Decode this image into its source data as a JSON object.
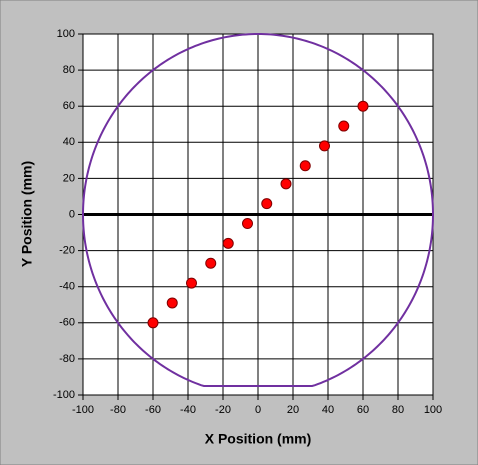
{
  "chart_data": {
    "type": "scatter",
    "x_label": "X Position (mm)",
    "y_label": "Y Position (mm)",
    "xlim": [
      -100,
      100
    ],
    "ylim": [
      -100,
      100
    ],
    "xticks": [
      -100,
      -80,
      -60,
      -40,
      -20,
      0,
      20,
      40,
      60,
      80,
      100
    ],
    "yticks": [
      -100,
      -80,
      -60,
      -40,
      -20,
      0,
      20,
      40,
      60,
      80,
      100
    ],
    "grid": true,
    "zero_line": true,
    "color": "#ff0000",
    "x": [
      -60,
      -49,
      -38,
      -27,
      -17,
      -6,
      5,
      16,
      27,
      38,
      49,
      60
    ],
    "values": [
      -60,
      -49,
      -38,
      -27,
      -16,
      -5,
      6,
      17,
      27,
      38,
      49,
      60
    ],
    "boundary": {
      "shape": "circle",
      "radius": 100,
      "cut_y": -95,
      "color": "#7030a0"
    }
  }
}
